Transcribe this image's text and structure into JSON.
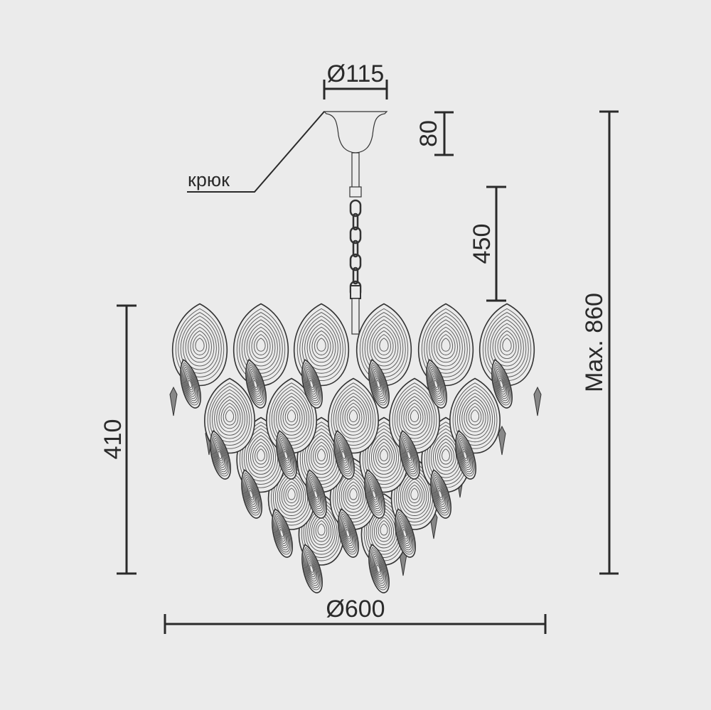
{
  "labels": {
    "canopy_diameter": "Ø115",
    "canopy_height": "80",
    "hook": "крюк",
    "chain_length": "450",
    "max_height": "Max. 860",
    "body_height": "410",
    "body_diameter": "Ø600"
  },
  "colors": {
    "background": "#ebebeb",
    "line": "#2a2a2a"
  }
}
